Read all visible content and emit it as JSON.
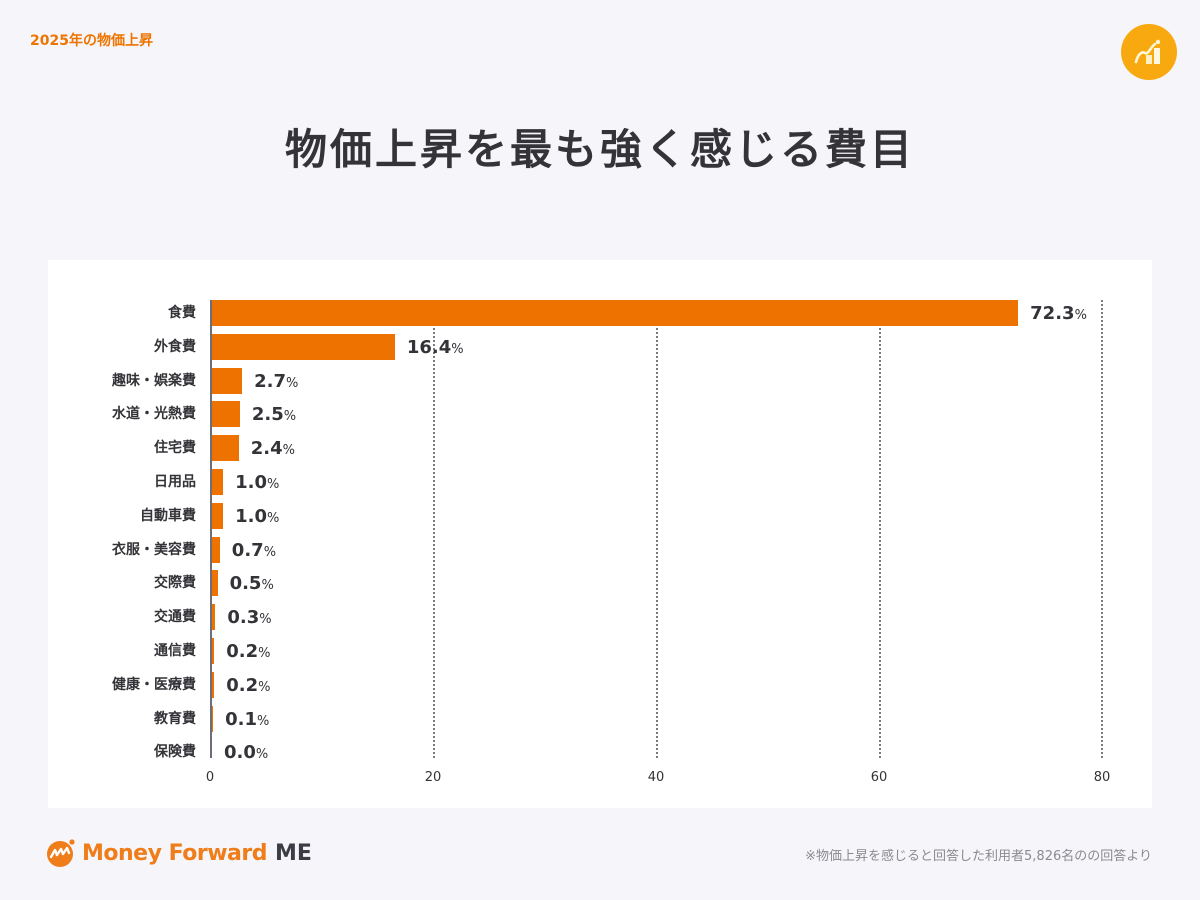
{
  "header": {
    "kicker": "2025年の物価上昇",
    "title": "物価上昇を最も強く感じる費目",
    "badge_icon": "chart-growth-icon"
  },
  "colors": {
    "accent": "#ee7200",
    "kicker": "#ee7400",
    "badge": "#f8a90f",
    "background": "#f6f5f9",
    "panel": "#ffffff",
    "text": "#333338"
  },
  "chart_data": {
    "type": "bar",
    "orientation": "horizontal",
    "title": "物価上昇を最も強く感じる費目",
    "xlabel": "",
    "ylabel": "",
    "xlim": [
      0,
      80
    ],
    "x_ticks": [
      "0",
      "20",
      "40",
      "60",
      "80"
    ],
    "grid": "vertical dotted",
    "value_suffix": "%",
    "categories": [
      "食費",
      "外食費",
      "趣味・娯楽費",
      "水道・光熱費",
      "住宅費",
      "日用品",
      "自動車費",
      "衣服・美容費",
      "交際費",
      "交通費",
      "通信費",
      "健康・医療費",
      "教育費",
      "保険費"
    ],
    "values": [
      72.3,
      16.4,
      2.7,
      2.5,
      2.4,
      1.0,
      1.0,
      0.7,
      0.5,
      0.3,
      0.2,
      0.2,
      0.1,
      0.0
    ],
    "value_labels": [
      "72.3",
      "16.4",
      "2.7",
      "2.5",
      "2.4",
      "1.0",
      "1.0",
      "0.7",
      "0.5",
      "0.3",
      "0.2",
      "0.2",
      "0.1",
      "0.0"
    ]
  },
  "footer": {
    "brand": "Money Forward",
    "brand_suffix": "ME",
    "note": "※物価上昇を感じると回答した利用者5,826名のの回答より"
  }
}
